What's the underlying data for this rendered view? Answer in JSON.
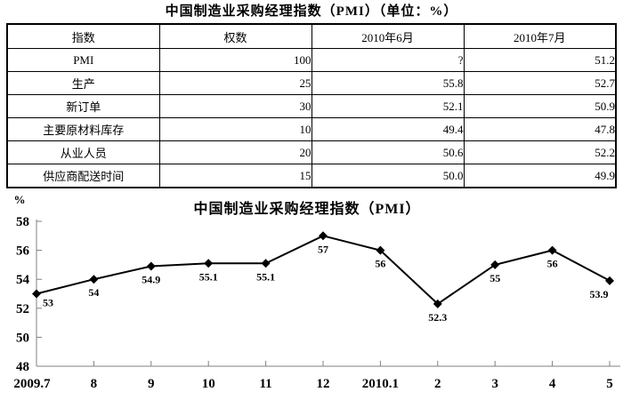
{
  "table": {
    "title": "中国制造业采购经理指数（PMI）（单位：%）",
    "headers": [
      "指数",
      "权数",
      "2010年6月",
      "2010年7月"
    ],
    "rows": [
      [
        "PMI",
        "100",
        "?",
        "51.2"
      ],
      [
        "生产",
        "25",
        "55.8",
        "52.7"
      ],
      [
        "新订单",
        "30",
        "52.1",
        "50.9"
      ],
      [
        "主要原材料库存",
        "10",
        "49.4",
        "47.8"
      ],
      [
        "从业人员",
        "20",
        "50.6",
        "52.2"
      ],
      [
        "供应商配送时间",
        "15",
        "50.0",
        "49.9"
      ]
    ]
  },
  "chart_data": {
    "type": "line",
    "title": "中国制造业采购经理指数（PMI）",
    "ylabel": "%",
    "xlabel": "",
    "categories": [
      "2009.7",
      "8",
      "9",
      "10",
      "11",
      "12",
      "2010.1",
      "2",
      "3",
      "4",
      "5"
    ],
    "values": [
      53,
      54,
      54.9,
      55.1,
      55.1,
      57,
      56,
      52.3,
      55,
      56,
      53.9
    ],
    "point_labels": [
      "53",
      "54",
      "54.9",
      "55.1",
      "55.1",
      "57",
      "56",
      "52.3",
      "55",
      "56",
      "53.9"
    ],
    "ylim": [
      48,
      58
    ],
    "ytick_step": 2,
    "grid": "off",
    "legend": "none",
    "line_color": "#000000",
    "marker": "diamond"
  }
}
